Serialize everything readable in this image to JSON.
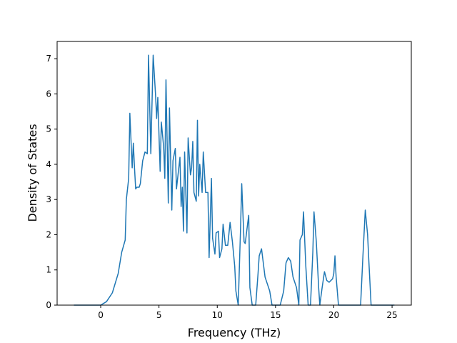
{
  "chart_data": {
    "type": "line",
    "xlabel": "Frequency (THz)",
    "ylabel": "Density of States",
    "xlim": [
      -3.74,
      26.65
    ],
    "ylim": [
      0,
      7.49
    ],
    "xticks": [
      0,
      5,
      10,
      15,
      20,
      25
    ],
    "yticks": [
      0,
      1,
      2,
      3,
      4,
      5,
      6,
      7
    ],
    "series": [
      {
        "color": "#1f77b4",
        "x": [
          -2.3,
          -1,
          0,
          0.5,
          1,
          1.5,
          1.8,
          2.1,
          2.2,
          2.4,
          2.5,
          2.7,
          2.8,
          2.9,
          3.0,
          3.1,
          3.3,
          3.4,
          3.6,
          3.8,
          4.0,
          4.1,
          4.3,
          4.5,
          4.7,
          4.8,
          4.9,
          5.1,
          5.2,
          5.4,
          5.5,
          5.6,
          5.8,
          5.9,
          6.1,
          6.2,
          6.4,
          6.5,
          6.8,
          6.9,
          7.0,
          7.1,
          7.2,
          7.4,
          7.5,
          7.7,
          7.8,
          7.9,
          8.0,
          8.2,
          8.3,
          8.4,
          8.5,
          8.7,
          8.8,
          9.0,
          9.2,
          9.3,
          9.5,
          9.6,
          9.8,
          9.9,
          10.1,
          10.2,
          10.4,
          10.5,
          10.7,
          10.9,
          11.1,
          11.3,
          11.5,
          11.6,
          11.8,
          12.0,
          12.1,
          12.3,
          12.4,
          12.6,
          12.7,
          12.8,
          13.0,
          13.3,
          13.5,
          13.6,
          13.8,
          14.1,
          14.3,
          14.5,
          14.7,
          15.4,
          15.7,
          15.9,
          16.1,
          16.3,
          16.5,
          16.8,
          17.0,
          17.1,
          17.3,
          17.4,
          17.6,
          17.8,
          18.0,
          18.2,
          18.3,
          18.5,
          18.7,
          18.8,
          19.0,
          19.2,
          19.4,
          19.6,
          19.9,
          20.0,
          20.1,
          20.2,
          20.4,
          22.3,
          22.5,
          22.7,
          22.9,
          23.0,
          23.2,
          25.2
        ],
        "values": [
          0,
          0,
          0,
          0.1,
          0.35,
          0.9,
          1.5,
          1.85,
          3.0,
          3.6,
          5.45,
          3.9,
          4.6,
          3.9,
          3.3,
          3.35,
          3.35,
          3.45,
          4.1,
          4.35,
          4.3,
          7.1,
          4.3,
          7.1,
          6.0,
          5.3,
          5.9,
          3.8,
          5.2,
          4.5,
          3.6,
          6.4,
          2.9,
          5.6,
          2.7,
          4.1,
          4.45,
          3.3,
          4.2,
          2.8,
          3.35,
          2.1,
          4.35,
          2.05,
          4.75,
          3.7,
          3.9,
          4.65,
          3.2,
          2.95,
          5.25,
          3.1,
          4.0,
          3.2,
          4.35,
          3.2,
          3.2,
          1.35,
          3.6,
          1.9,
          1.45,
          2.05,
          2.1,
          1.35,
          1.6,
          2.3,
          1.7,
          1.7,
          2.35,
          1.8,
          1.1,
          0.4,
          0,
          2.2,
          3.45,
          1.8,
          1.75,
          2.3,
          2.55,
          0.5,
          0,
          0,
          0.9,
          1.4,
          1.6,
          0.8,
          0.6,
          0.4,
          0,
          0,
          0.4,
          1.2,
          1.35,
          1.25,
          0.8,
          0.5,
          0,
          1.85,
          2.0,
          2.65,
          1.1,
          0,
          0,
          1.5,
          2.65,
          1.8,
          0.5,
          0,
          0.5,
          0.95,
          0.7,
          0.65,
          0.75,
          0.9,
          1.4,
          0.8,
          0,
          0,
          1.4,
          2.7,
          2.0,
          1.3,
          0,
          0
        ]
      }
    ]
  }
}
